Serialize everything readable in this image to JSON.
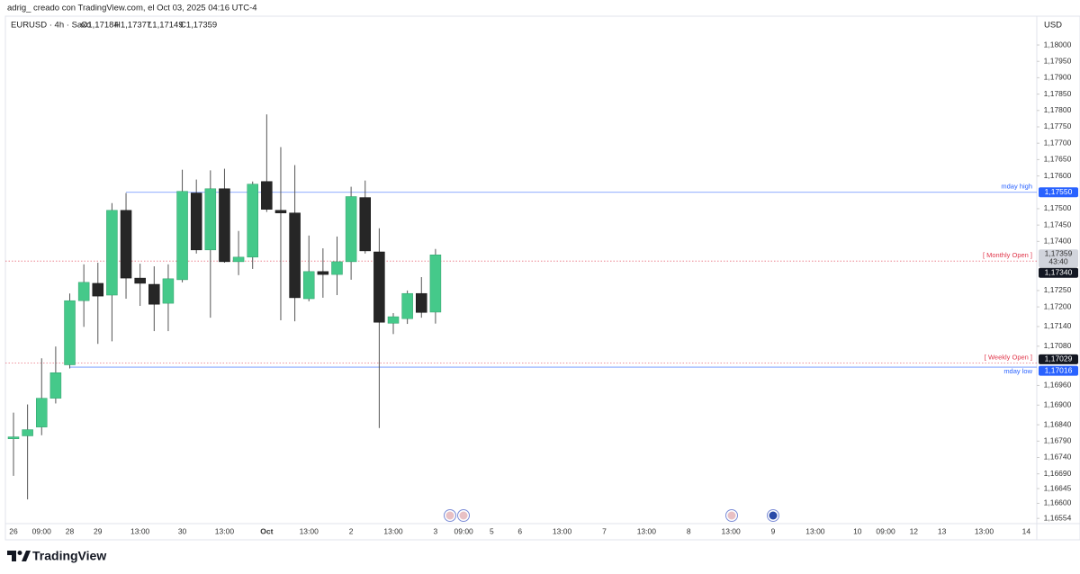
{
  "header": {
    "author_line": "adrig_ creado con TradingView.com, el Oct 03, 2025 04:16 UTC-4",
    "symbol": "EURUSD · 4h · Saxo",
    "ohlc": [
      "O1,17184",
      "H1,17377",
      "L1,17149",
      "C1,17359"
    ]
  },
  "footer": {
    "brand": "TradingView"
  },
  "chart_data": {
    "type": "candlestick",
    "currency": "USD",
    "up_color": "#45c98a",
    "down_color": "#262626",
    "categories": [
      "26",
      null,
      "09:00",
      null,
      "28",
      null,
      "29",
      null,
      null,
      "13:00",
      null,
      null,
      "30",
      null,
      null,
      "13:00",
      null,
      null,
      "Oct",
      null,
      null,
      "13:00",
      null,
      null,
      "2",
      null,
      null,
      "13:00",
      null,
      null,
      "3",
      null,
      "09:00",
      null,
      "5",
      null,
      "6",
      null,
      null,
      "13:00",
      null,
      null,
      "7",
      null,
      null,
      "13:00",
      null,
      null,
      "8",
      null,
      null,
      "13:00",
      null,
      null,
      "9",
      null,
      null,
      "13:00",
      null,
      null,
      "10",
      null,
      "09:00",
      null,
      "12",
      null,
      "13",
      null,
      null,
      "13:00",
      null,
      null,
      "14"
    ],
    "open": [
      1.16797,
      1.16806,
      1.16833,
      1.16921,
      1.17023,
      1.17219,
      1.17272,
      1.17236,
      1.17495,
      1.17288,
      1.17269,
      1.17211,
      1.17283,
      1.17548,
      1.17374,
      1.17561,
      1.17338,
      1.17352,
      1.17583,
      1.17495,
      1.17487,
      1.17225,
      1.17308,
      1.17299,
      1.17338,
      1.17534,
      1.17368,
      1.1715,
      1.17164,
      1.17241,
      1.17184,
      null,
      null,
      null,
      null,
      null,
      null,
      null,
      null,
      null,
      null,
      null,
      null,
      null,
      null,
      null,
      null,
      null,
      null,
      null,
      null,
      null,
      null,
      null,
      null,
      null,
      null,
      null,
      null,
      null,
      null,
      null,
      null,
      null,
      null,
      null,
      null,
      null,
      null,
      null,
      null,
      null,
      null
    ],
    "high": [
      1.16877,
      1.16902,
      1.17043,
      1.17079,
      1.17241,
      1.1733,
      1.17335,
      1.17517,
      1.17548,
      1.17332,
      1.17324,
      1.1733,
      1.17619,
      1.17589,
      1.17617,
      1.17622,
      1.17432,
      1.17583,
      1.17788,
      1.17688,
      1.17633,
      1.17418,
      1.17379,
      1.17415,
      1.17567,
      1.17586,
      1.1744,
      1.17181,
      1.1725,
      1.17291,
      1.17377,
      null,
      null,
      null,
      null,
      null,
      null,
      null,
      null,
      null,
      null,
      null,
      null,
      null,
      null,
      null,
      null,
      null,
      null,
      null,
      null,
      null,
      null,
      null,
      null,
      null,
      null,
      null,
      null,
      null,
      null,
      null,
      null,
      null,
      null,
      null,
      null,
      null,
      null,
      null,
      null,
      null,
      null
    ],
    "low": [
      1.16684,
      1.16612,
      1.16808,
      1.16905,
      1.17012,
      1.17139,
      1.17087,
      1.17095,
      1.17225,
      1.17203,
      1.17126,
      1.17126,
      1.17275,
      1.17363,
      1.17167,
      1.17335,
      1.17297,
      1.17316,
      1.1749,
      1.17159,
      1.17156,
      1.17217,
      1.17228,
      1.17236,
      1.17283,
      1.17363,
      1.1683,
      1.17117,
      1.17148,
      1.17167,
      1.17149,
      null,
      null,
      null,
      null,
      null,
      null,
      null,
      null,
      null,
      null,
      null,
      null,
      null,
      null,
      null,
      null,
      null,
      null,
      null,
      null,
      null,
      null,
      null,
      null,
      null,
      null,
      null,
      null,
      null,
      null,
      null,
      null,
      null,
      null,
      null,
      null,
      null,
      null,
      null,
      null,
      null,
      null
    ],
    "close": [
      1.16803,
      1.16825,
      1.16921,
      1.16999,
      1.17219,
      1.17275,
      1.17233,
      1.17495,
      1.17288,
      1.17272,
      1.17208,
      1.17286,
      1.17553,
      1.17374,
      1.17561,
      1.17338,
      1.17352,
      1.17575,
      1.17498,
      1.17487,
      1.17228,
      1.17308,
      1.17299,
      1.17338,
      1.17537,
      1.17371,
      1.17153,
      1.1717,
      1.17241,
      1.17183,
      1.17359,
      null,
      null,
      null,
      null,
      null,
      null,
      null,
      null,
      null,
      null,
      null,
      null,
      null,
      null,
      null,
      null,
      null,
      null,
      null,
      null,
      null,
      null,
      null,
      null,
      null,
      null,
      null,
      null,
      null,
      null,
      null,
      null,
      null,
      null,
      null,
      null,
      null,
      null,
      null,
      null,
      null,
      null
    ],
    "last_price_label": "1,17359",
    "countdown": "43:40",
    "ylim": [
      1.16538,
      1.18088
    ],
    "yticks": [
      {
        "value": 1.18,
        "label": "1,18000"
      },
      {
        "value": 1.1795,
        "label": "1,17950"
      },
      {
        "value": 1.179,
        "label": "1,17900"
      },
      {
        "value": 1.1785,
        "label": "1,17850"
      },
      {
        "value": 1.178,
        "label": "1,17800"
      },
      {
        "value": 1.1775,
        "label": "1,17750"
      },
      {
        "value": 1.177,
        "label": "1,17700"
      },
      {
        "value": 1.1765,
        "label": "1,17650"
      },
      {
        "value": 1.176,
        "label": "1,17600"
      },
      {
        "value": 1.175,
        "label": "1,17500"
      },
      {
        "value": 1.1745,
        "label": "1,17450"
      },
      {
        "value": 1.174,
        "label": "1,17400"
      },
      {
        "value": 1.1725,
        "label": "1,17250"
      },
      {
        "value": 1.172,
        "label": "1,17200"
      },
      {
        "value": 1.1714,
        "label": "1,17140"
      },
      {
        "value": 1.1708,
        "label": "1,17080"
      },
      {
        "value": 1.1696,
        "label": "1,16960"
      },
      {
        "value": 1.169,
        "label": "1,16900"
      },
      {
        "value": 1.1684,
        "label": "1,16840"
      },
      {
        "value": 1.1679,
        "label": "1,16790"
      },
      {
        "value": 1.1674,
        "label": "1,16740"
      },
      {
        "value": 1.1669,
        "label": "1,16690"
      },
      {
        "value": 1.16645,
        "label": "1,16645"
      },
      {
        "value": 1.166,
        "label": "1,16600"
      },
      {
        "value": 1.16554,
        "label": "1,16554"
      }
    ],
    "levels": [
      {
        "name": "mday high",
        "value": 1.1755,
        "label": "1,17550",
        "color": "#2962ff",
        "style": "solid",
        "anchor": "high"
      },
      {
        "name": "[ Monthly Open ]",
        "value": 1.1734,
        "label": "1,17340",
        "color": "#e0364a",
        "style": "dotted"
      },
      {
        "name": "[ Weekly Open ]",
        "value": 1.17029,
        "label": "1,17029",
        "color": "#e0364a",
        "style": "dotted"
      },
      {
        "name": "mday low",
        "value": 1.17016,
        "label": "1,17016",
        "color": "#2962ff",
        "style": "solid",
        "anchor": "low"
      }
    ]
  }
}
